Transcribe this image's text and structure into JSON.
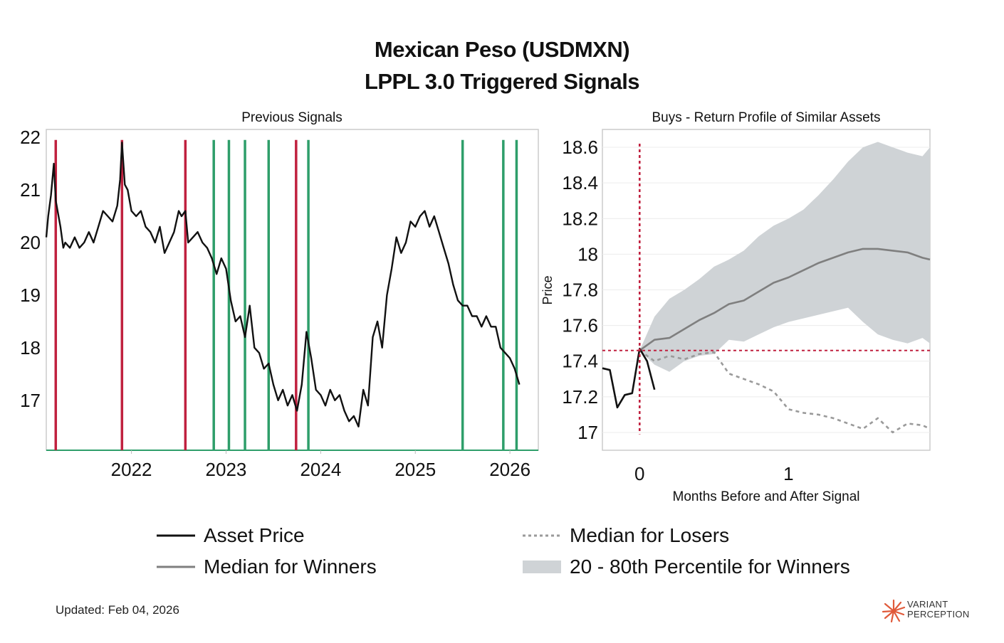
{
  "title": {
    "line1": "Mexican Peso (USDMXN)",
    "line2": "LPPL 3.0 Triggered Signals"
  },
  "footer": {
    "updated": "Updated: Feb 04, 2026",
    "logo_line1": "VARIANT",
    "logo_line2": "PERCEPTION"
  },
  "colors": {
    "price": "#111111",
    "sell_signal": "#c0213f",
    "buy_signal": "#2e9e6a",
    "median_winners": "#7f7f7f",
    "band": "#cfd3d6",
    "losers": "#9a9a9a",
    "axis": "#cccccc"
  },
  "legend": {
    "asset_price": "Asset Price",
    "median_winners": "Median for Winners",
    "median_losers": "Median for Losers",
    "band": "20 - 80th Percentile for Winners"
  },
  "chart_data": [
    {
      "type": "line",
      "title": "Previous Signals",
      "xlabel": "",
      "ylabel": "",
      "xlim": [
        2021.1,
        2026.3
      ],
      "ylim": [
        16.05,
        22.15
      ],
      "xticks": [
        2022,
        2023,
        2024,
        2025,
        2026
      ],
      "yticks": [
        17,
        18,
        19,
        20,
        21,
        22
      ],
      "series": [
        {
          "name": "Asset Price",
          "x": [
            2021.1,
            2021.12,
            2021.15,
            2021.18,
            2021.2,
            2021.22,
            2021.25,
            2021.28,
            2021.3,
            2021.35,
            2021.4,
            2021.45,
            2021.5,
            2021.55,
            2021.6,
            2021.65,
            2021.7,
            2021.75,
            2021.8,
            2021.85,
            2021.88,
            2021.9,
            2021.93,
            2021.96,
            2022.0,
            2022.05,
            2022.1,
            2022.15,
            2022.2,
            2022.25,
            2022.3,
            2022.35,
            2022.4,
            2022.45,
            2022.5,
            2022.53,
            2022.57,
            2022.6,
            2022.65,
            2022.7,
            2022.75,
            2022.8,
            2022.85,
            2022.9,
            2022.95,
            2023.0,
            2023.05,
            2023.1,
            2023.15,
            2023.2,
            2023.25,
            2023.3,
            2023.35,
            2023.4,
            2023.45,
            2023.5,
            2023.55,
            2023.6,
            2023.65,
            2023.7,
            2023.75,
            2023.8,
            2023.85,
            2023.9,
            2023.95,
            2024.0,
            2024.05,
            2024.1,
            2024.15,
            2024.2,
            2024.25,
            2024.3,
            2024.35,
            2024.4,
            2024.45,
            2024.5,
            2024.55,
            2024.6,
            2024.65,
            2024.7,
            2024.75,
            2024.8,
            2024.85,
            2024.9,
            2024.95,
            2025.0,
            2025.05,
            2025.1,
            2025.15,
            2025.2,
            2025.25,
            2025.3,
            2025.35,
            2025.4,
            2025.45,
            2025.5,
            2025.55,
            2025.6,
            2025.65,
            2025.7,
            2025.75,
            2025.8,
            2025.85,
            2025.9,
            2025.95,
            2026.0,
            2026.05,
            2026.1
          ],
          "values": [
            20.1,
            20.5,
            20.9,
            21.5,
            20.8,
            20.6,
            20.3,
            19.9,
            20.0,
            19.9,
            20.1,
            19.9,
            20.0,
            20.2,
            20.0,
            20.3,
            20.6,
            20.5,
            20.4,
            20.7,
            21.2,
            21.9,
            21.1,
            21.0,
            20.6,
            20.5,
            20.6,
            20.3,
            20.2,
            20.0,
            20.3,
            19.8,
            20.0,
            20.2,
            20.6,
            20.5,
            20.6,
            20.0,
            20.1,
            20.2,
            20.0,
            19.9,
            19.7,
            19.4,
            19.7,
            19.5,
            18.9,
            18.5,
            18.6,
            18.2,
            18.8,
            18.0,
            17.9,
            17.6,
            17.7,
            17.3,
            17.0,
            17.2,
            16.9,
            17.1,
            16.8,
            17.3,
            18.3,
            17.8,
            17.2,
            17.1,
            16.9,
            17.2,
            17.0,
            17.1,
            16.8,
            16.6,
            16.7,
            16.5,
            17.2,
            16.9,
            18.2,
            18.5,
            18.0,
            19.0,
            19.5,
            20.1,
            19.8,
            20.0,
            20.4,
            20.3,
            20.5,
            20.6,
            20.3,
            20.5,
            20.2,
            19.9,
            19.6,
            19.2,
            18.9,
            18.8,
            18.8,
            18.6,
            18.6,
            18.4,
            18.6,
            18.4,
            18.4,
            18.0,
            17.9,
            17.8,
            17.6,
            17.3
          ]
        }
      ],
      "sell_signals_x": [
        2021.2,
        2021.9,
        2022.57,
        2023.74
      ],
      "buy_signals_x": [
        2022.87,
        2023.03,
        2023.2,
        2023.45,
        2023.87,
        2025.5,
        2025.93,
        2026.07
      ]
    },
    {
      "type": "line",
      "title": "Buys - Return Profile of Similar Assets",
      "xlabel": "Months Before and After Signal",
      "ylabel": "Price",
      "xlim": [
        -0.25,
        1.95
      ],
      "ylim": [
        16.9,
        18.7
      ],
      "xticks": [
        0,
        1
      ],
      "yticks": [
        17,
        17.2,
        17.4,
        17.6,
        17.8,
        18,
        18.2,
        18.4,
        18.6
      ],
      "ytick_labels": [
        "17",
        "17.2",
        "17.4",
        "17.6",
        "17.8",
        "18",
        "18.2",
        "18.4",
        "18.6"
      ],
      "signal_x": 0,
      "signal_price": 17.46,
      "series": [
        {
          "name": "Asset Price",
          "x": [
            -0.25,
            -0.2,
            -0.15,
            -0.1,
            -0.05,
            0.0,
            0.05,
            0.1
          ],
          "values": [
            17.36,
            17.35,
            17.14,
            17.21,
            17.22,
            17.47,
            17.4,
            17.24
          ]
        },
        {
          "name": "Median for Winners",
          "x": [
            0.0,
            0.1,
            0.2,
            0.3,
            0.4,
            0.5,
            0.6,
            0.7,
            0.8,
            0.9,
            1.0,
            1.1,
            1.2,
            1.3,
            1.4,
            1.5,
            1.6,
            1.7,
            1.8,
            1.9,
            1.95
          ],
          "values": [
            17.46,
            17.52,
            17.53,
            17.58,
            17.63,
            17.67,
            17.72,
            17.74,
            17.79,
            17.84,
            17.87,
            17.91,
            17.95,
            17.98,
            18.01,
            18.03,
            18.03,
            18.02,
            18.01,
            17.98,
            17.97
          ]
        },
        {
          "name": "Median for Losers",
          "x": [
            0.0,
            0.1,
            0.2,
            0.3,
            0.4,
            0.5,
            0.6,
            0.7,
            0.8,
            0.9,
            1.0,
            1.1,
            1.2,
            1.3,
            1.4,
            1.5,
            1.6,
            1.7,
            1.8,
            1.9,
            1.95
          ],
          "values": [
            17.46,
            17.4,
            17.43,
            17.41,
            17.44,
            17.45,
            17.33,
            17.3,
            17.27,
            17.23,
            17.13,
            17.11,
            17.1,
            17.08,
            17.05,
            17.02,
            17.08,
            17.0,
            17.05,
            17.04,
            17.02
          ]
        },
        {
          "name": "20 - 80th Percentile for Winners",
          "x": [
            0.0,
            0.1,
            0.2,
            0.3,
            0.4,
            0.5,
            0.6,
            0.7,
            0.8,
            0.9,
            1.0,
            1.1,
            1.2,
            1.3,
            1.4,
            1.5,
            1.6,
            1.7,
            1.8,
            1.9,
            1.95
          ],
          "upper": [
            17.46,
            17.65,
            17.75,
            17.8,
            17.86,
            17.93,
            17.97,
            18.02,
            18.1,
            18.16,
            18.2,
            18.25,
            18.33,
            18.42,
            18.52,
            18.6,
            18.63,
            18.6,
            18.57,
            18.55,
            18.6
          ],
          "lower": [
            17.46,
            17.38,
            17.34,
            17.4,
            17.43,
            17.44,
            17.52,
            17.51,
            17.55,
            17.59,
            17.62,
            17.64,
            17.66,
            17.68,
            17.7,
            17.62,
            17.55,
            17.52,
            17.5,
            17.53,
            17.5
          ]
        }
      ]
    }
  ]
}
